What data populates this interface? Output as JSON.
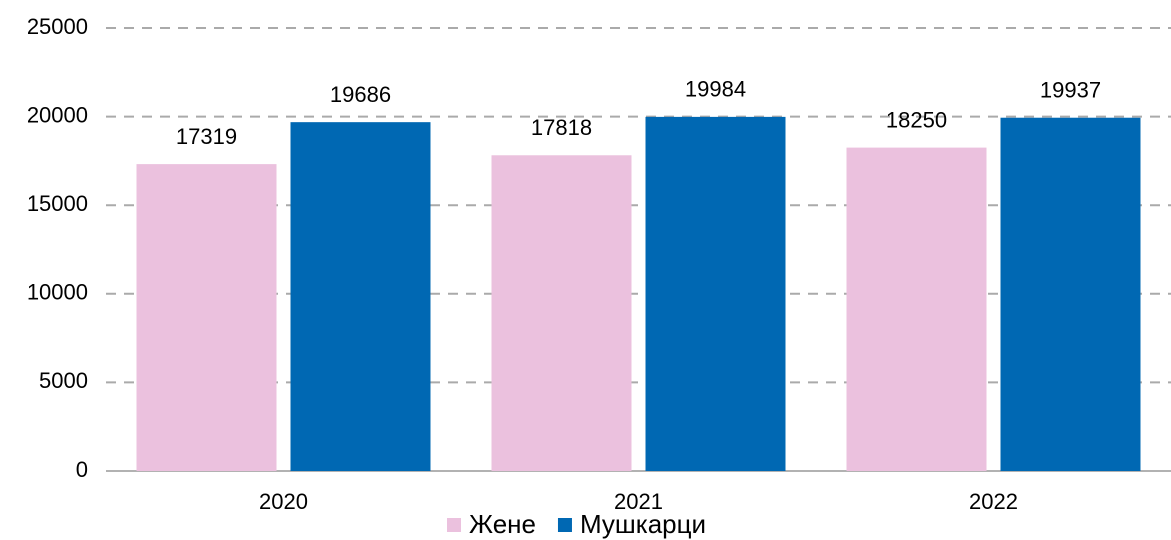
{
  "chart_data": {
    "type": "bar",
    "categories": [
      "2020",
      "2021",
      "2022"
    ],
    "series": [
      {
        "name": "Жене",
        "color": "#ebc1de",
        "values": [
          17319,
          17818,
          18250
        ]
      },
      {
        "name": "Мушкарци",
        "color": "#0068b3",
        "values": [
          19686,
          19984,
          19937
        ]
      }
    ],
    "ylim": [
      0,
      25000
    ],
    "yticks": [
      0,
      5000,
      10000,
      15000,
      20000,
      25000
    ],
    "grid": true,
    "legend": "bottom"
  }
}
